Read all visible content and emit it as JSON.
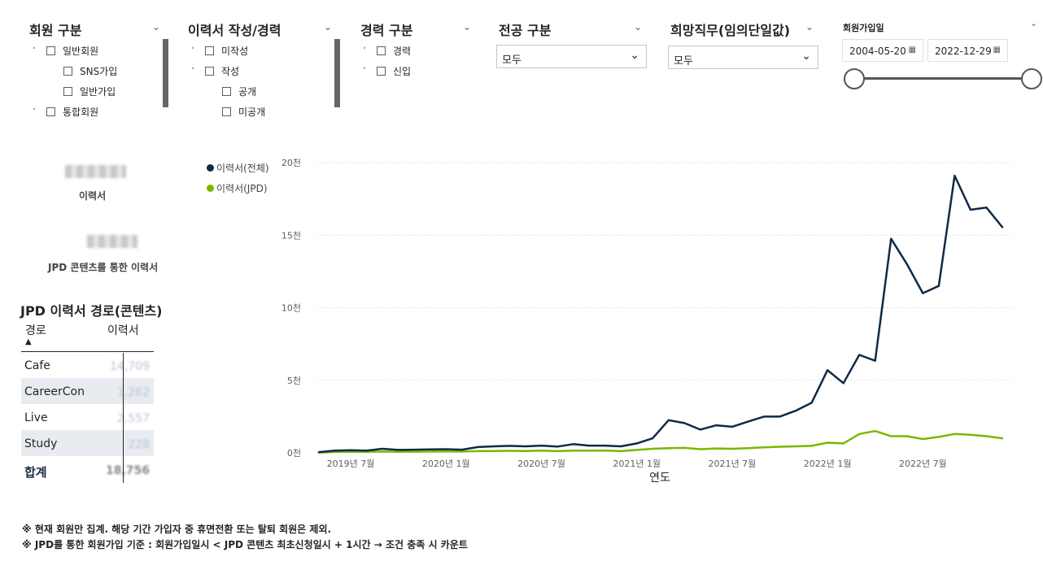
{
  "slicers": {
    "member_type": {
      "title": "회원 구분",
      "items": [
        {
          "toggle": "^",
          "label": "일반회원"
        },
        {
          "toggle": "",
          "label": "SNS가입"
        },
        {
          "toggle": "",
          "label": "일반가입"
        },
        {
          "toggle": "v",
          "label": "통합회원"
        }
      ]
    },
    "resume_status": {
      "title": "이력서 작성/경력",
      "items": [
        {
          "toggle": "v",
          "label": "미작성"
        },
        {
          "toggle": "^",
          "label": "작성"
        },
        {
          "toggle": "",
          "label": "공개"
        },
        {
          "toggle": "",
          "label": "미공개"
        }
      ]
    },
    "career_type": {
      "title": "경력 구분",
      "items": [
        {
          "toggle": "v",
          "label": "경력"
        },
        {
          "toggle": "v",
          "label": "신입"
        }
      ]
    },
    "major_type": {
      "title": "전공 구분",
      "value": "모두"
    },
    "desired_job": {
      "title": "희망직무(임의단일값)",
      "value": "모두"
    },
    "join_date": {
      "title": "회원가입일",
      "start": "2004-05-20",
      "end": "2022-12-29",
      "range_fraction": [
        0,
        1
      ]
    }
  },
  "cards": {
    "resume_label": "이력서",
    "jpd_resume_label": "JPD 콘텐츠를 통한 이력서"
  },
  "table": {
    "title": "JPD 이력서 경로(콘텐츠)",
    "headers": [
      "경로",
      "이력서"
    ],
    "rows": [
      {
        "route": "Cafe",
        "count": "14,709"
      },
      {
        "route": "CareerCon",
        "count": "1,262"
      },
      {
        "route": "Live",
        "count": "2,557"
      },
      {
        "route": "Study",
        "count": "228"
      }
    ],
    "total": {
      "route": "합계",
      "count": "18,756"
    }
  },
  "chart_data": {
    "type": "line",
    "xlabel": "연도",
    "ylabel": "",
    "x_ticks": [
      "2019년 7월",
      "2020년 1월",
      "2020년 7월",
      "2021년 1월",
      "2021년 7월",
      "2022년 1월",
      "2022년 7월"
    ],
    "y_ticks": [
      "0천",
      "5천",
      "10천",
      "15천",
      "20천"
    ],
    "ylim": [
      0,
      20000
    ],
    "grid": true,
    "legend_position": "top-left",
    "x": [
      "2019-05",
      "2019-06",
      "2019-07",
      "2019-08",
      "2019-09",
      "2019-10",
      "2019-11",
      "2019-12",
      "2020-01",
      "2020-02",
      "2020-03",
      "2020-04",
      "2020-05",
      "2020-06",
      "2020-07",
      "2020-08",
      "2020-09",
      "2020-10",
      "2020-11",
      "2020-12",
      "2021-01",
      "2021-02",
      "2021-03",
      "2021-04",
      "2021-05",
      "2021-06",
      "2021-07",
      "2021-08",
      "2021-09",
      "2021-10",
      "2021-11",
      "2021-12",
      "2022-01",
      "2022-02",
      "2022-03",
      "2022-04",
      "2022-05",
      "2022-06",
      "2022-07",
      "2022-08",
      "2022-09",
      "2022-10",
      "2022-11",
      "2022-12"
    ],
    "series": [
      {
        "name": "이력서(전체)",
        "color": "#0f2a47",
        "values": [
          50,
          150,
          180,
          150,
          280,
          200,
          220,
          240,
          250,
          220,
          400,
          450,
          480,
          450,
          500,
          430,
          600,
          500,
          500,
          450,
          650,
          1000,
          2250,
          2050,
          1600,
          1900,
          1800,
          2150,
          2500,
          2500,
          2900,
          3450,
          5700,
          4800,
          6750,
          6350,
          14750,
          13000,
          11000,
          11500,
          19100,
          16750,
          16900,
          15550
        ]
      },
      {
        "name": "이력서(JPD)",
        "color": "#7ab800",
        "values": [
          20,
          60,
          80,
          70,
          90,
          80,
          80,
          90,
          100,
          90,
          120,
          130,
          140,
          130,
          150,
          120,
          150,
          150,
          160,
          120,
          200,
          280,
          320,
          340,
          250,
          300,
          280,
          320,
          380,
          420,
          450,
          480,
          700,
          650,
          1300,
          1500,
          1150,
          1150,
          950,
          1100,
          1300,
          1250,
          1150,
          1000
        ]
      }
    ]
  },
  "notes": [
    "※ 현재 회원만 집계. 해당 기간 가입자 중 휴면전환 또는 탈퇴 회원은 제외.",
    "※ JPD를 통한 회원가입 기준 : 회원가입일시 < JPD 콘텐츠 최초신청일시 + 1시간 → 조건 충족 시 카운트"
  ],
  "colors": {
    "navy": "#0f2a47",
    "green": "#7ab800",
    "row_alt": "#e8ecf0"
  }
}
